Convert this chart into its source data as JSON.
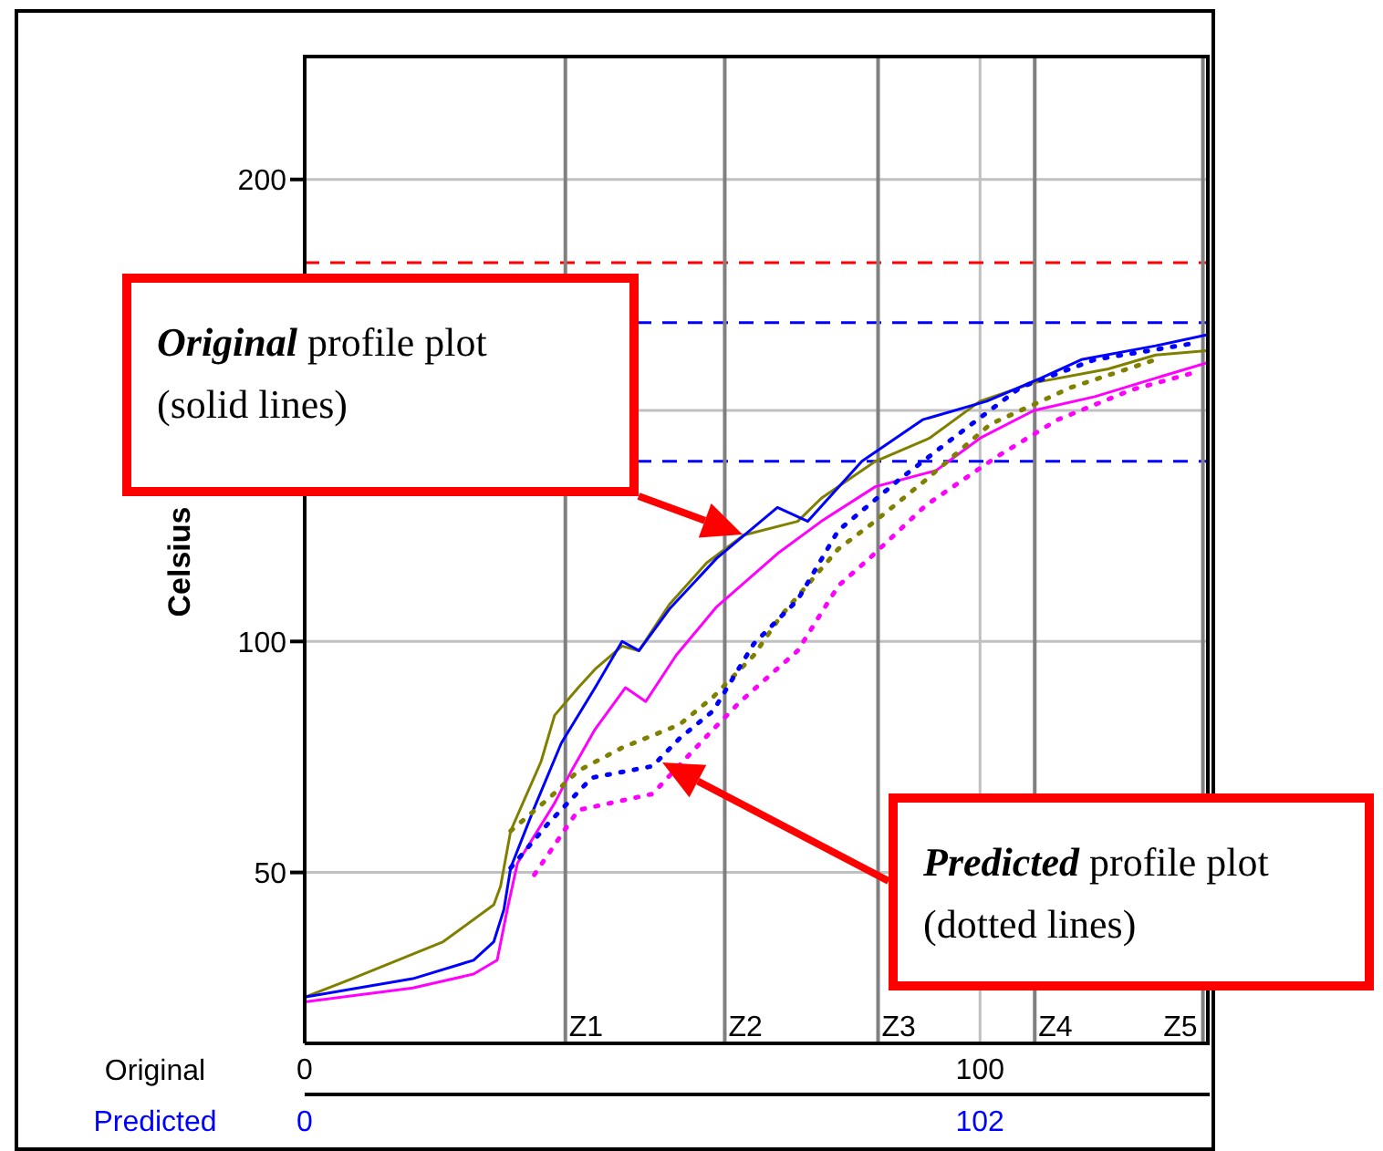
{
  "chart_data": {
    "type": "line",
    "ylabel": "Celsius",
    "xlabel": "Original",
    "x2label": "Predicted",
    "xlim": [
      0,
      134
    ],
    "xticks": [
      0,
      100
    ],
    "x2lim": [
      0,
      136.7
    ],
    "x2ticks": [
      0,
      102
    ],
    "ylim": [
      13,
      227
    ],
    "yticks": [
      50,
      100,
      {
        "value": 150,
        "label": null
      },
      200
    ],
    "grid": true,
    "marker": "none",
    "series": [
      {
        "color": "#808000",
        "line_style": "solid",
        "x": [
          0,
          7,
          20.5,
          28,
          29,
          30.5,
          32,
          35,
          37,
          40.5,
          43,
          47,
          49.5,
          54,
          59.5,
          65,
          73,
          76.5,
          84.5,
          92.5,
          100,
          108,
          119,
          126,
          134
        ],
        "values": [
          23,
          27,
          35,
          43,
          47,
          59,
          64,
          74,
          84,
          90,
          94,
          99,
          98,
          108,
          117,
          123,
          126,
          131,
          139,
          144,
          152,
          156,
          159,
          162,
          163
        ]
      },
      {
        "color": "#0000ff",
        "line_style": "solid",
        "x": [
          0,
          16,
          25,
          28,
          29.5,
          30.5,
          34,
          38,
          43,
          47,
          49.5,
          54,
          61,
          70,
          74.5,
          82.5,
          91.5,
          101,
          109,
          115,
          126,
          134
        ],
        "values": [
          23,
          27,
          31,
          35,
          42,
          51,
          64,
          78,
          90,
          100,
          98,
          107,
          118,
          129,
          126,
          139,
          148,
          152,
          157,
          161,
          164,
          166.5
        ]
      },
      {
        "color": "#ff00ff",
        "line_style": "solid",
        "x": [
          0,
          16,
          25,
          28.5,
          30,
          31.5,
          37,
          39.5,
          43,
          47.5,
          50.5,
          55,
          61,
          70,
          76.5,
          84.5,
          93.5,
          100,
          108,
          117,
          126,
          134
        ],
        "values": [
          22,
          25,
          28,
          31,
          42,
          52,
          65,
          72,
          81,
          90,
          87,
          97,
          107.5,
          119,
          126,
          133.5,
          137,
          144,
          150,
          153,
          157,
          160.5
        ]
      },
      {
        "color": "#808000",
        "line_style": "dotted",
        "x": [
          30.5,
          36.5,
          40.5,
          47,
          55.5,
          60.5,
          66.5,
          70.5,
          79,
          84,
          92,
          101.5,
          113.5,
          126
        ],
        "values": [
          59,
          66.5,
          72,
          77,
          82,
          88,
          97,
          105.5,
          120,
          125.5,
          135,
          147,
          155,
          161
        ]
      },
      {
        "color": "#0000ff",
        "line_style": "dotted",
        "x": [
          30.5,
          36,
          42.5,
          51.5,
          55.5,
          60.5,
          66.5,
          73,
          79,
          88,
          96,
          106,
          117,
          131.5
        ],
        "values": [
          51,
          60.5,
          70.5,
          73,
          79,
          85,
          99.5,
          109,
          124,
          135,
          144,
          155,
          161,
          164.5
        ]
      },
      {
        "color": "#ff00ff",
        "line_style": "dotted",
        "x": [
          34,
          40.5,
          51.5,
          60.5,
          64.5,
          73,
          79,
          84,
          92,
          102.5,
          111.5,
          122.5,
          132.5
        ],
        "values": [
          49.5,
          63.5,
          67,
          81,
          87,
          98,
          112,
          118.5,
          129.5,
          140,
          148,
          154.5,
          158.5
        ]
      }
    ],
    "ref_lines": [
      {
        "axis": "y",
        "value": 182,
        "label": null,
        "color": "#ff0000",
        "line_style": "dashed"
      },
      {
        "axis": "y",
        "value": 169,
        "label": null,
        "color": "#0000ff",
        "line_style": "dashed"
      },
      {
        "axis": "y",
        "value": 139,
        "label": null,
        "color": "#0000ff",
        "line_style": "dashed"
      },
      {
        "axis": "x",
        "value": 38.6,
        "label": "Z1",
        "color": "#808080",
        "line_style": "solid"
      },
      {
        "axis": "x",
        "value": 62.2,
        "label": "Z2",
        "color": "#808080",
        "line_style": "solid"
      },
      {
        "axis": "x",
        "value": 84.9,
        "label": "Z3",
        "color": "#808080",
        "line_style": "solid"
      },
      {
        "axis": "x",
        "value": 108.1,
        "label": "Z4",
        "color": "#808080",
        "line_style": "solid"
      },
      {
        "axis": "x",
        "value": 133,
        "label": "Z5",
        "color": "#808080",
        "line_style": "solid"
      }
    ],
    "annotations": [
      "Original profile plot (solid lines)",
      "Predicted profile plot (dotted lines)"
    ]
  }
}
